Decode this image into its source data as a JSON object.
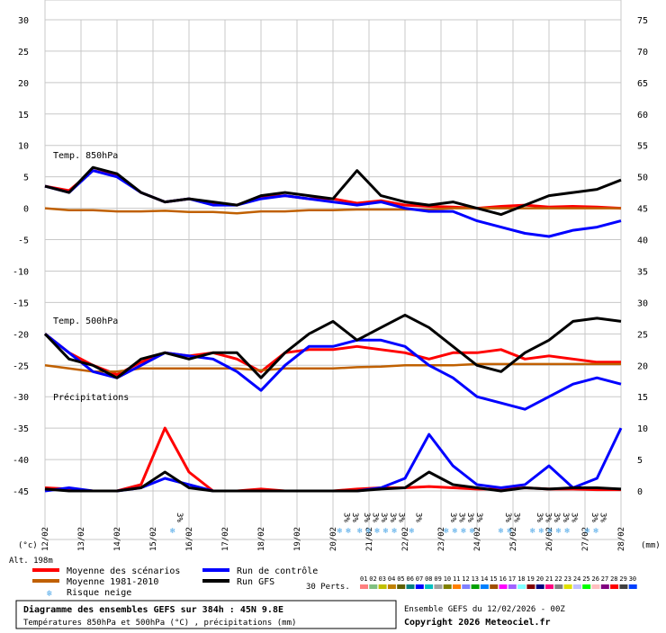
{
  "chart_data": {
    "type": "line",
    "left_axis": {
      "unit": "(°c)",
      "ticks": [
        30,
        25,
        20,
        15,
        10,
        5,
        0,
        -5,
        -10,
        -15,
        -20,
        -25,
        -30,
        -35,
        -40,
        -45
      ],
      "ylim": [
        -45,
        30
      ]
    },
    "right_axis": {
      "unit": "(mm)",
      "ticks": [
        75,
        70,
        65,
        60,
        55,
        50,
        45,
        40,
        35,
        30,
        25,
        20,
        15,
        10,
        5,
        0
      ],
      "ylim": [
        0,
        75
      ]
    },
    "x_dates": [
      "12/02",
      "13/02",
      "14/02",
      "15/02",
      "16/02",
      "17/02",
      "18/02",
      "19/02",
      "20/02",
      "21/02",
      "22/02",
      "23/02",
      "24/02",
      "25/02",
      "26/02",
      "27/02",
      "28/02"
    ],
    "grid": true,
    "section_labels": {
      "t850": "Temp. 850hPa",
      "t500": "Temp. 500hPa",
      "precip": "Précipitations"
    },
    "snow_risk": {
      "label": "3%",
      "positions": [
        4.5,
        10.3,
        10.6,
        11.0,
        11.3,
        11.6,
        11.9,
        12.2,
        12.8,
        14.0,
        14.3,
        14.6,
        14.9,
        15.9,
        16.2,
        17.0,
        17.3,
        17.6,
        17.9,
        18.2,
        18.9,
        19.2
      ]
    },
    "series": [
      {
        "name": "Moyenne des scénarios",
        "color": "#ff0000",
        "t850": [
          3.5,
          2.8,
          6.0,
          5.2,
          2.5,
          1.0,
          1.5,
          0.8,
          0.5,
          1.8,
          2.0,
          1.5,
          1.5,
          0.8,
          1.2,
          0.5,
          0.3,
          0.2,
          0.0,
          0.3,
          0.5,
          0.2,
          0.3,
          0.2,
          0.0
        ],
        "t500": [
          -20,
          -23,
          -25,
          -26.5,
          -24.5,
          -23,
          -23.5,
          -23,
          -24,
          -26,
          -23,
          -22.5,
          -22.5,
          -22,
          -22.5,
          -23,
          -24,
          -23,
          -23,
          -22.5,
          -24,
          -23.5,
          -24,
          -24.5,
          -24.5
        ],
        "precip": [
          0.5,
          0.3,
          0,
          0,
          1,
          10,
          3,
          0,
          0,
          0.3,
          0,
          0,
          0,
          0.3,
          0.5,
          0.5,
          0.7,
          0.5,
          0.3,
          0.3,
          0.5,
          0.3,
          0.3,
          0.2,
          0.2
        ]
      },
      {
        "name": "Moyenne 1981-2010",
        "color": "#c06000",
        "t850": [
          0,
          -0.3,
          -0.3,
          -0.5,
          -0.5,
          -0.4,
          -0.6,
          -0.6,
          -0.8,
          -0.5,
          -0.5,
          -0.3,
          -0.3,
          -0.2,
          -0.2,
          -0.2,
          -0.2,
          0,
          0,
          0,
          0,
          0,
          0,
          0,
          0
        ],
        "t500": [
          -25,
          -25.5,
          -26,
          -26,
          -25.5,
          -25.5,
          -25.5,
          -25.5,
          -25.5,
          -25.8,
          -25.5,
          -25.5,
          -25.5,
          -25.3,
          -25.2,
          -25,
          -25,
          -25,
          -24.8,
          -24.8,
          -24.8,
          -24.8,
          -24.8,
          -24.8,
          -24.8
        ]
      },
      {
        "name": "Run de contrôle",
        "color": "#0000ff",
        "t850": [
          3.5,
          2.5,
          6,
          5,
          2.5,
          1,
          1.5,
          0.5,
          0.5,
          1.5,
          2,
          1.5,
          1,
          0.5,
          1,
          0,
          -0.5,
          -0.5,
          -2,
          -3,
          -4,
          -4.5,
          -3.5,
          -3,
          -2
        ],
        "t500": [
          -20,
          -23,
          -26,
          -27,
          -25,
          -23,
          -23.5,
          -24,
          -26,
          -29,
          -25,
          -22,
          -22,
          -21,
          -21,
          -22,
          -25,
          -27,
          -30,
          -31,
          -32,
          -30,
          -28,
          -27,
          -28
        ],
        "precip": [
          0,
          0.5,
          0,
          0,
          0.5,
          2,
          1,
          0,
          0,
          0,
          0,
          0,
          0,
          0,
          0.5,
          2,
          9,
          4,
          1,
          0.5,
          1,
          4,
          0.5,
          2,
          10
        ]
      },
      {
        "name": "Run GFS",
        "color": "#000000",
        "t850": [
          3.5,
          2.5,
          6.5,
          5.5,
          2.5,
          1,
          1.5,
          1,
          0.5,
          2,
          2.5,
          2,
          1.5,
          6,
          2,
          1,
          0.5,
          1,
          0,
          -1,
          0.5,
          2,
          2.5,
          3,
          4.5
        ],
        "t500": [
          -20,
          -24,
          -25,
          -27,
          -24,
          -23,
          -24,
          -23,
          -23,
          -27,
          -23,
          -20,
          -18,
          -21,
          -19,
          -17,
          -19,
          -22,
          -25,
          -26,
          -23,
          -21,
          -18,
          -17.5,
          -18
        ],
        "precip": [
          0.3,
          0,
          0,
          0,
          0.5,
          3,
          0.5,
          0,
          0,
          0,
          0,
          0,
          0,
          0,
          0.3,
          0.5,
          3,
          1,
          0.5,
          0,
          0.5,
          0.3,
          0.5,
          0.5,
          0.3
        ]
      }
    ],
    "ensemble_count_label": "30 Perts.",
    "perturbation_ids": [
      "01",
      "02",
      "03",
      "04",
      "05",
      "06",
      "07",
      "08",
      "09",
      "10",
      "11",
      "12",
      "13",
      "14",
      "15",
      "16",
      "17",
      "18",
      "19",
      "20",
      "21",
      "22",
      "23",
      "24",
      "25",
      "26",
      "27",
      "28",
      "29",
      "30"
    ],
    "perturbation_colors": [
      "#ff8080",
      "#80c080",
      "#c0c000",
      "#c08000",
      "#606000",
      "#008080",
      "#0000ff",
      "#00c0c0",
      "#a0a0a0",
      "#808000",
      "#ff8000",
      "#8080ff",
      "#00a000",
      "#0080ff",
      "#a05000",
      "#ff00ff",
      "#a060ff",
      "#80ffff",
      "#800000",
      "#000080",
      "#ff0080",
      "#808080",
      "#e0e000",
      "#c0c0ff",
      "#00ff00",
      "#ffc0c0",
      "#800080",
      "#ff0000",
      "#404040",
      "#0040ff"
    ]
  },
  "footer": {
    "altitude": "Alt. 198m",
    "legend_items": {
      "mean": "Moyenne des scénarios",
      "clim": "Moyenne 1981-2010",
      "snow": "Risque neige",
      "control": "Run de contrôle",
      "gfs": "Run GFS"
    },
    "title_line1": "Diagramme des ensembles GEFS sur 384h : 45N 9.8E",
    "title_line2": "Températures 850hPa et 500hPa (°C) , précipitations (mm)",
    "run_info": "Ensemble GEFS du 12/02/2026 - 00Z",
    "copyright": "Copyright 2026 Meteociel.fr"
  }
}
